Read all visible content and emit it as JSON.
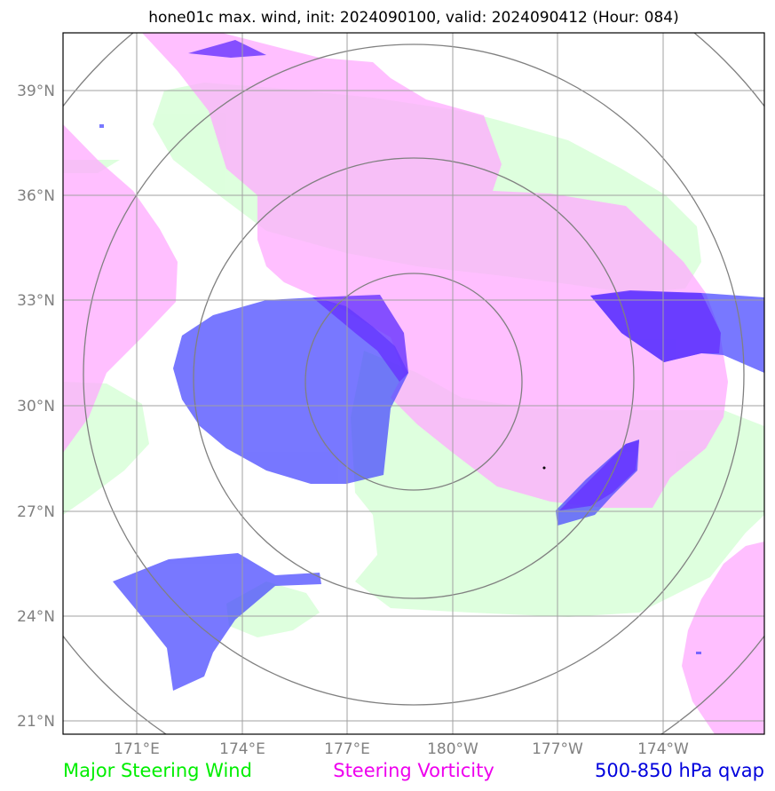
{
  "title": "hone01c max. wind, init: 2024090100, valid: 2024090412 (Hour: 084)",
  "lat_labels": [
    "39°N",
    "36°N",
    "33°N",
    "30°N",
    "27°N",
    "24°N",
    "21°N"
  ],
  "lon_labels": [
    "171°E",
    "174°E",
    "177°E",
    "180°W",
    "177°W",
    "174°W"
  ],
  "legend": [
    {
      "label": "Major Steering Wind",
      "color": "#00ee00"
    },
    {
      "label": "Steering Vorticity",
      "color": "#ee00ee"
    },
    {
      "label": "500-850 hPa qvap",
      "color": "#0000dd"
    }
  ],
  "layers": {
    "steering_wind": {
      "color": "#ccffcc"
    },
    "steering_vorticity": {
      "color": "#ffaaff"
    },
    "qvap": {
      "color": "#4444ff"
    },
    "qvap_dark": {
      "color": "#6633ff"
    }
  },
  "extent": {
    "lon_min": 168.9,
    "lon_max": 188.9,
    "lat_min": 20.6,
    "lat_max": 40.6
  },
  "chart_data": {
    "type": "map",
    "title": "hone01c max. wind, init: 2024090100, valid: 2024090412 (Hour: 084)",
    "projection": "PlateCarree",
    "lon_range": [
      168.9,
      188.9
    ],
    "lat_range": [
      20.6,
      40.6
    ],
    "gridlines": true,
    "range_rings": true,
    "series": [
      {
        "name": "Major Steering Wind",
        "color": "#00ee00"
      },
      {
        "name": "Steering Vorticity",
        "color": "#ee00ee"
      },
      {
        "name": "500-850 hPa qvap",
        "color": "#0000dd"
      }
    ]
  }
}
